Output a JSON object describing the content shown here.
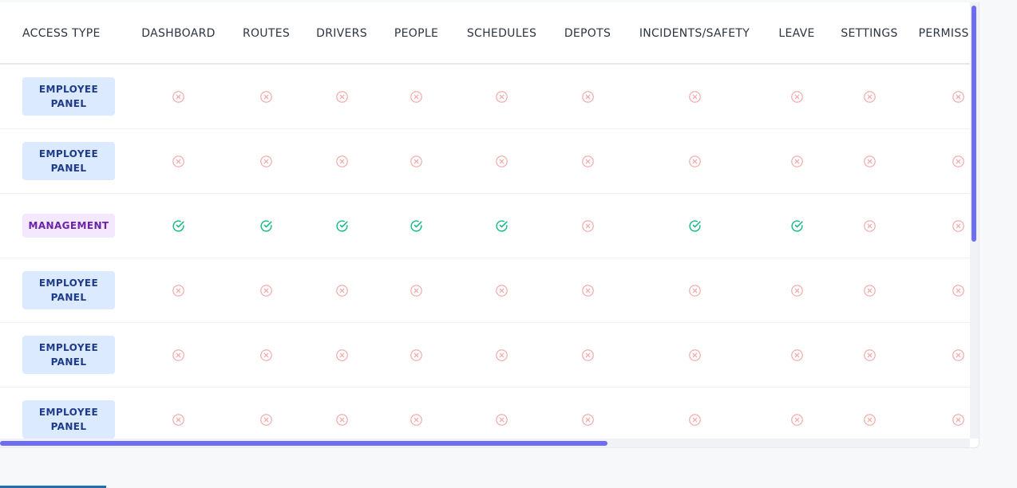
{
  "columns": [
    "ACCESS TYPE",
    "DASHBOARD",
    "ROUTES",
    "DRIVERS",
    "PEOPLE",
    "SCHEDULES",
    "DEPOTS",
    "INCIDENTS/SAFETY",
    "LEAVE",
    "SETTINGS",
    "PERMISSIONS"
  ],
  "rows": [
    {
      "access_type": "EMPLOYEE PANEL",
      "kind": "employee",
      "perms": [
        false,
        false,
        false,
        false,
        false,
        false,
        false,
        false,
        false,
        false
      ]
    },
    {
      "access_type": "EMPLOYEE PANEL",
      "kind": "employee",
      "perms": [
        false,
        false,
        false,
        false,
        false,
        false,
        false,
        false,
        false,
        false
      ]
    },
    {
      "access_type": "MANAGEMENT",
      "kind": "management",
      "perms": [
        true,
        true,
        true,
        true,
        true,
        false,
        true,
        true,
        false,
        false
      ]
    },
    {
      "access_type": "EMPLOYEE PANEL",
      "kind": "employee",
      "perms": [
        false,
        false,
        false,
        false,
        false,
        false,
        false,
        false,
        false,
        false
      ]
    },
    {
      "access_type": "EMPLOYEE PANEL",
      "kind": "employee",
      "perms": [
        false,
        false,
        false,
        false,
        false,
        false,
        false,
        false,
        false,
        false
      ]
    },
    {
      "access_type": "EMPLOYEE PANEL",
      "kind": "employee",
      "perms": [
        false,
        false,
        false,
        false,
        false,
        false,
        false,
        false,
        false,
        false
      ]
    }
  ],
  "icons": {
    "granted": "check-circle-icon",
    "denied": "x-circle-icon"
  },
  "colors": {
    "granted": "#10b981",
    "denied": "#f4a3a3",
    "employee_badge_bg": "#dbeafe",
    "employee_badge_text": "#1e3a8a",
    "management_badge_bg": "#f3e8ff",
    "management_badge_text": "#6b21a8",
    "scrollbar": "#6c6cf5"
  },
  "scroll": {
    "horizontal_position": 0.0,
    "vertical_position": 0.0
  }
}
